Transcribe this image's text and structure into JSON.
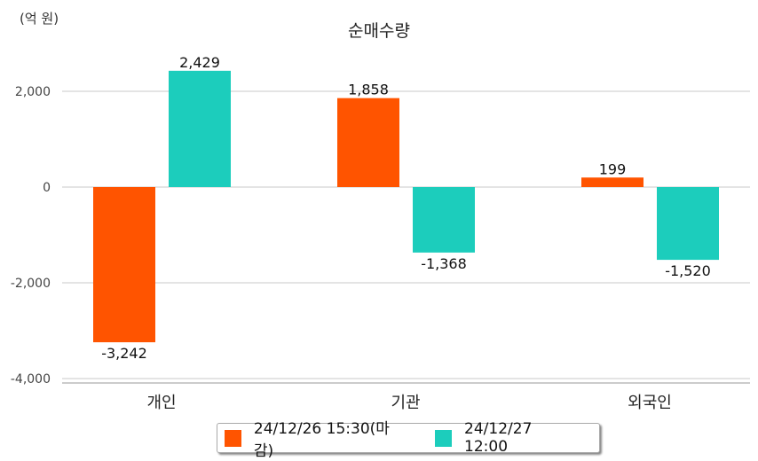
{
  "chart_data": {
    "type": "bar",
    "title": "순매수량",
    "unit_label": "(억 원)",
    "categories": [
      "개인",
      "기관",
      "외국인"
    ],
    "series": [
      {
        "name": "24/12/26 15:30(마감)",
        "color": "#ff5400",
        "values": [
          -3242,
          1858,
          199
        ],
        "labels": [
          "-3,242",
          "1,858",
          "199"
        ]
      },
      {
        "name": "24/12/27 12:00",
        "color": "#1ccdbc",
        "values": [
          2429,
          -1368,
          -1520
        ],
        "labels": [
          "2,429",
          "-1,368",
          "-1,520"
        ]
      }
    ],
    "yticks": [
      2000,
      0,
      -2000,
      -4000
    ],
    "ytick_labels": [
      "2,000",
      "0",
      "-2,000",
      "-4,000"
    ],
    "ylim": [
      -4000,
      2000
    ],
    "grid": true,
    "legend_position": "bottom"
  }
}
